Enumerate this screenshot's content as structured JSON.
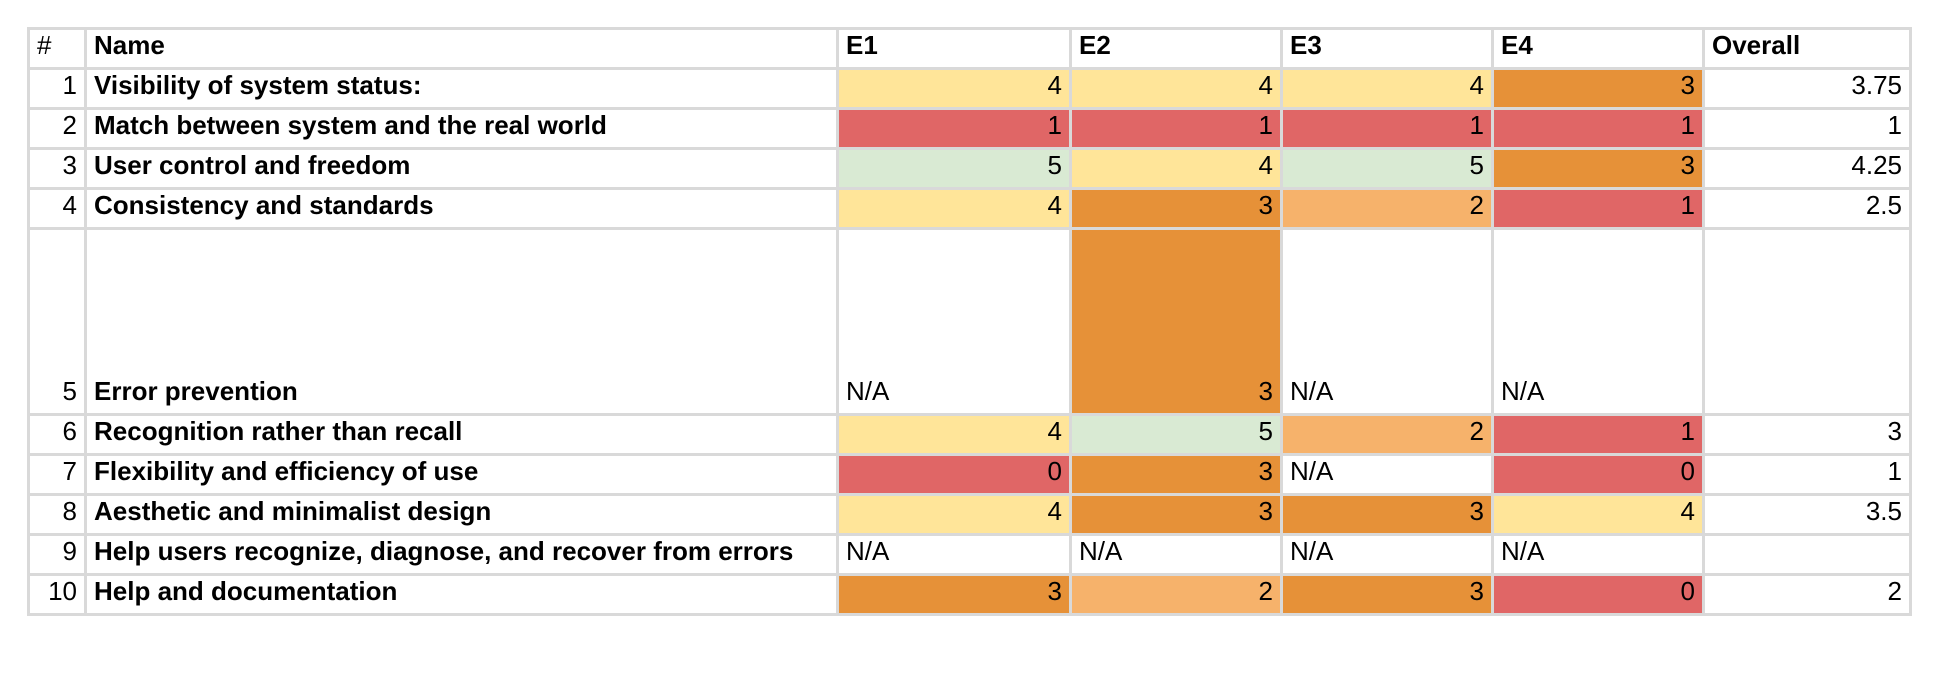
{
  "palette": {
    "0": "#e06666",
    "1": "#e06666",
    "2": "#f6b26b",
    "3": "#e69138",
    "4": "#ffe599",
    "5": "#d9ead3",
    "N/A": "#ffffff"
  },
  "table": {
    "headers": [
      "#",
      "Name",
      "E1",
      "E2",
      "E3",
      "E4",
      "Overall"
    ],
    "rows": [
      {
        "num": "1",
        "name": "Visibility of system status:",
        "scores": [
          "4",
          "4",
          "4",
          "3"
        ],
        "overall": "3.75"
      },
      {
        "num": "2",
        "name": "Match between system and the real world",
        "scores": [
          "1",
          "1",
          "1",
          "1"
        ],
        "overall": "1"
      },
      {
        "num": "3",
        "name": "User control and freedom",
        "scores": [
          "5",
          "4",
          "5",
          "3"
        ],
        "overall": "4.25"
      },
      {
        "num": "4",
        "name": "Consistency and standards",
        "scores": [
          "4",
          "3",
          "2",
          "1"
        ],
        "overall": "2.5"
      },
      {
        "num": "5",
        "name": "Error prevention",
        "scores": [
          "N/A",
          "3",
          "N/A",
          "N/A"
        ],
        "overall": ""
      },
      {
        "num": "6",
        "name": "Recognition rather than recall",
        "scores": [
          "4",
          "5",
          "2",
          "1"
        ],
        "overall": "3"
      },
      {
        "num": "7",
        "name": "Flexibility and efficiency of use",
        "scores": [
          "0",
          "3",
          "N/A",
          "0"
        ],
        "overall": "1"
      },
      {
        "num": "8",
        "name": "Aesthetic and minimalist design",
        "scores": [
          "4",
          "3",
          "3",
          "4"
        ],
        "overall": "3.5"
      },
      {
        "num": "9",
        "name": "Help users recognize, diagnose, and recover from errors",
        "scores": [
          "N/A",
          "N/A",
          "N/A",
          "N/A"
        ],
        "overall": ""
      },
      {
        "num": "10",
        "name": "Help and documentation",
        "scores": [
          "3",
          "2",
          "3",
          "0"
        ],
        "overall": "2"
      }
    ]
  }
}
